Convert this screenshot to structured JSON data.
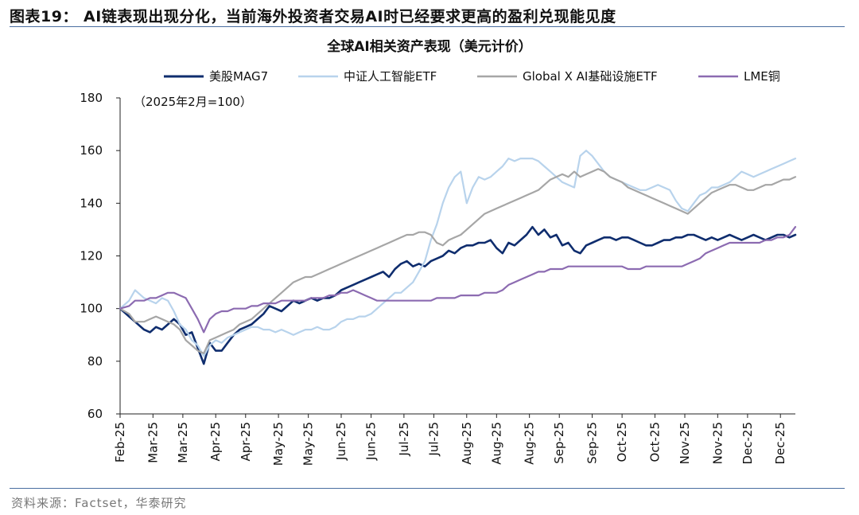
{
  "figure": {
    "title": "图表19： AI链表现出现分化，当前海外投资者交易AI时已经要求更高的盈利兑现能见度",
    "source": "资料来源：Factset，华泰研究"
  },
  "chart_data": {
    "type": "line",
    "title": "全球AI相关资产表现（美元计价）",
    "annotation": "（2025年2月=100）",
    "ylim": [
      60,
      180
    ],
    "yticks": [
      60,
      80,
      100,
      120,
      140,
      160,
      180
    ],
    "xlim": [
      0,
      226
    ],
    "x_tick_positions": [
      0,
      11,
      21,
      32,
      42,
      53,
      63,
      74,
      84,
      95,
      105,
      116,
      126,
      137,
      147,
      158,
      168,
      179,
      189,
      200,
      210,
      221
    ],
    "x_tick_labels": [
      "Feb-25",
      "Mar-25",
      "Mar-25",
      "Apr-25",
      "Apr-25",
      "May-25",
      "May-25",
      "Jun-25",
      "Jun-25",
      "Jul-25",
      "Jul-25",
      "Aug-25",
      "Aug-25",
      "Aug-25",
      "Sep-25",
      "Sep-25",
      "Oct-25",
      "Oct-25",
      "Nov-25",
      "Nov-25",
      "Dec-25",
      "Dec-25"
    ],
    "legend_position": "top",
    "series": [
      {
        "name": "美股MAG7",
        "color": "#0f2d6e",
        "x": [
          0,
          3,
          5,
          8,
          10,
          12,
          14,
          16,
          18,
          20,
          22,
          24,
          26,
          28,
          30,
          32,
          34,
          36,
          38,
          40,
          42,
          44,
          46,
          48,
          50,
          52,
          54,
          56,
          58,
          60,
          62,
          64,
          66,
          68,
          70,
          72,
          74,
          76,
          78,
          80,
          82,
          84,
          86,
          88,
          90,
          92,
          94,
          96,
          98,
          100,
          102,
          104,
          106,
          108,
          110,
          112,
          114,
          116,
          118,
          120,
          122,
          124,
          126,
          128,
          130,
          132,
          134,
          136,
          138,
          140,
          142,
          144,
          146,
          148,
          150,
          152,
          154,
          156,
          158,
          160,
          162,
          164,
          166,
          168,
          170,
          172,
          174,
          176,
          178,
          180,
          182,
          184,
          186,
          188,
          190,
          192,
          194,
          196,
          198,
          200,
          202,
          204,
          206,
          208,
          210,
          212,
          214,
          216,
          218,
          220,
          222,
          224,
          226
        ],
        "y": [
          100,
          97,
          95,
          92,
          91,
          93,
          92,
          94,
          96,
          94,
          90,
          91,
          85,
          79,
          87,
          84,
          84,
          87,
          90,
          92,
          93,
          94,
          96,
          98,
          101,
          100,
          99,
          101,
          103,
          102,
          103,
          104,
          103,
          104,
          104,
          105,
          107,
          108,
          109,
          110,
          111,
          112,
          113,
          114,
          112,
          115,
          117,
          118,
          116,
          117,
          116,
          118,
          119,
          120,
          122,
          121,
          123,
          124,
          124,
          125,
          125,
          126,
          123,
          121,
          125,
          124,
          126,
          128,
          131,
          128,
          130,
          127,
          128,
          124,
          125,
          122,
          121,
          124,
          125,
          126,
          127,
          127,
          126,
          127,
          127,
          126,
          125,
          124,
          124,
          125,
          126,
          126,
          127,
          127,
          128,
          128,
          127,
          126,
          127,
          126,
          127,
          128,
          127,
          126,
          127,
          128,
          127,
          126,
          127,
          128,
          128,
          127,
          128
        ]
      },
      {
        "name": "中证人工智能ETF",
        "color": "#b8d3ec",
        "x": [
          0,
          3,
          5,
          8,
          10,
          12,
          14,
          16,
          18,
          20,
          22,
          24,
          26,
          28,
          30,
          32,
          34,
          36,
          38,
          40,
          42,
          44,
          46,
          48,
          50,
          52,
          54,
          56,
          58,
          60,
          62,
          64,
          66,
          68,
          70,
          72,
          74,
          76,
          78,
          80,
          82,
          84,
          86,
          88,
          90,
          92,
          94,
          96,
          98,
          100,
          102,
          104,
          106,
          108,
          110,
          112,
          114,
          116,
          118,
          120,
          122,
          124,
          126,
          128,
          130,
          132,
          134,
          136,
          138,
          140,
          142,
          144,
          146,
          148,
          150,
          152,
          154,
          156,
          158,
          160,
          162,
          164,
          166,
          168,
          170,
          172,
          174,
          176,
          178,
          180,
          182,
          184,
          186,
          188,
          190,
          192,
          194,
          196,
          198,
          200,
          202,
          204,
          206,
          208,
          210,
          212,
          214,
          216,
          218,
          220,
          222,
          224,
          226
        ],
        "y": [
          100,
          103,
          107,
          104,
          103,
          102,
          104,
          103,
          99,
          94,
          92,
          88,
          86,
          82,
          86,
          88,
          87,
          89,
          90,
          91,
          92,
          93,
          93,
          92,
          92,
          91,
          92,
          91,
          90,
          91,
          92,
          92,
          93,
          92,
          92,
          93,
          95,
          96,
          96,
          97,
          97,
          98,
          100,
          102,
          104,
          106,
          106,
          108,
          110,
          114,
          118,
          126,
          132,
          140,
          146,
          150,
          152,
          140,
          146,
          150,
          149,
          150,
          152,
          154,
          157,
          156,
          157,
          157,
          157,
          156,
          154,
          152,
          150,
          148,
          147,
          146,
          158,
          160,
          158,
          155,
          152,
          150,
          149,
          148,
          147,
          146,
          145,
          145,
          146,
          147,
          146,
          145,
          141,
          138,
          137,
          140,
          143,
          144,
          146,
          146,
          147,
          148,
          150,
          152,
          151,
          150,
          151,
          152,
          153,
          154,
          155,
          156,
          157
        ]
      },
      {
        "name": "Global X AI基础设施ETF",
        "color": "#a6a6a6",
        "x": [
          0,
          3,
          5,
          8,
          10,
          12,
          14,
          16,
          18,
          20,
          22,
          24,
          26,
          28,
          30,
          32,
          34,
          36,
          38,
          40,
          42,
          44,
          46,
          48,
          50,
          52,
          54,
          56,
          58,
          60,
          62,
          64,
          66,
          68,
          70,
          72,
          74,
          76,
          78,
          80,
          82,
          84,
          86,
          88,
          90,
          92,
          94,
          96,
          98,
          100,
          102,
          104,
          106,
          108,
          110,
          112,
          114,
          116,
          118,
          120,
          122,
          124,
          126,
          128,
          130,
          132,
          134,
          136,
          138,
          140,
          142,
          144,
          146,
          148,
          150,
          152,
          154,
          156,
          158,
          160,
          162,
          164,
          166,
          168,
          170,
          172,
          174,
          176,
          178,
          180,
          182,
          184,
          186,
          188,
          190,
          192,
          194,
          196,
          198,
          200,
          202,
          204,
          206,
          208,
          210,
          212,
          214,
          216,
          218,
          220,
          222,
          224,
          226
        ],
        "y": [
          100,
          98,
          95,
          95,
          96,
          97,
          96,
          95,
          94,
          92,
          88,
          86,
          84,
          83,
          88,
          89,
          90,
          91,
          92,
          94,
          95,
          96,
          98,
          100,
          102,
          104,
          106,
          108,
          110,
          111,
          112,
          112,
          113,
          114,
          115,
          116,
          117,
          118,
          119,
          120,
          121,
          122,
          123,
          124,
          125,
          126,
          127,
          128,
          128,
          129,
          129,
          128,
          125,
          124,
          126,
          127,
          128,
          130,
          132,
          134,
          136,
          137,
          138,
          139,
          140,
          141,
          142,
          143,
          144,
          145,
          147,
          149,
          150,
          151,
          150,
          152,
          150,
          151,
          152,
          153,
          152,
          150,
          149,
          148,
          146,
          145,
          144,
          143,
          142,
          141,
          140,
          139,
          138,
          137,
          136,
          138,
          140,
          142,
          144,
          145,
          146,
          147,
          147,
          146,
          145,
          145,
          146,
          147,
          147,
          148,
          149,
          149,
          150
        ]
      },
      {
        "name": "LME铜",
        "color": "#8c6bb1",
        "x": [
          0,
          3,
          5,
          8,
          10,
          12,
          14,
          16,
          18,
          20,
          22,
          24,
          26,
          28,
          30,
          32,
          34,
          36,
          38,
          40,
          42,
          44,
          46,
          48,
          50,
          52,
          54,
          56,
          58,
          60,
          62,
          64,
          66,
          68,
          70,
          72,
          74,
          76,
          78,
          80,
          82,
          84,
          86,
          88,
          90,
          92,
          94,
          96,
          98,
          100,
          102,
          104,
          106,
          108,
          110,
          112,
          114,
          116,
          118,
          120,
          122,
          124,
          126,
          128,
          130,
          132,
          134,
          136,
          138,
          140,
          142,
          144,
          146,
          148,
          150,
          152,
          154,
          156,
          158,
          160,
          162,
          164,
          166,
          168,
          170,
          172,
          174,
          176,
          178,
          180,
          182,
          184,
          186,
          188,
          190,
          192,
          194,
          196,
          198,
          200,
          202,
          204,
          206,
          208,
          210,
          212,
          214,
          216,
          218,
          220,
          222,
          224,
          226
        ],
        "y": [
          100,
          101,
          103,
          103,
          104,
          104,
          105,
          106,
          106,
          105,
          104,
          100,
          96,
          91,
          96,
          98,
          99,
          99,
          100,
          100,
          100,
          101,
          101,
          102,
          102,
          102,
          103,
          103,
          103,
          103,
          103,
          104,
          104,
          104,
          105,
          105,
          106,
          106,
          107,
          106,
          105,
          104,
          103,
          103,
          103,
          103,
          103,
          103,
          103,
          103,
          103,
          103,
          104,
          104,
          104,
          104,
          105,
          105,
          105,
          105,
          106,
          106,
          106,
          107,
          109,
          110,
          111,
          112,
          113,
          114,
          114,
          115,
          115,
          115,
          116,
          116,
          116,
          116,
          116,
          116,
          116,
          116,
          116,
          116,
          115,
          115,
          115,
          116,
          116,
          116,
          116,
          116,
          116,
          116,
          117,
          118,
          119,
          121,
          122,
          123,
          124,
          125,
          125,
          125,
          125,
          125,
          125,
          126,
          126,
          127,
          127,
          128,
          131
        ]
      }
    ]
  }
}
